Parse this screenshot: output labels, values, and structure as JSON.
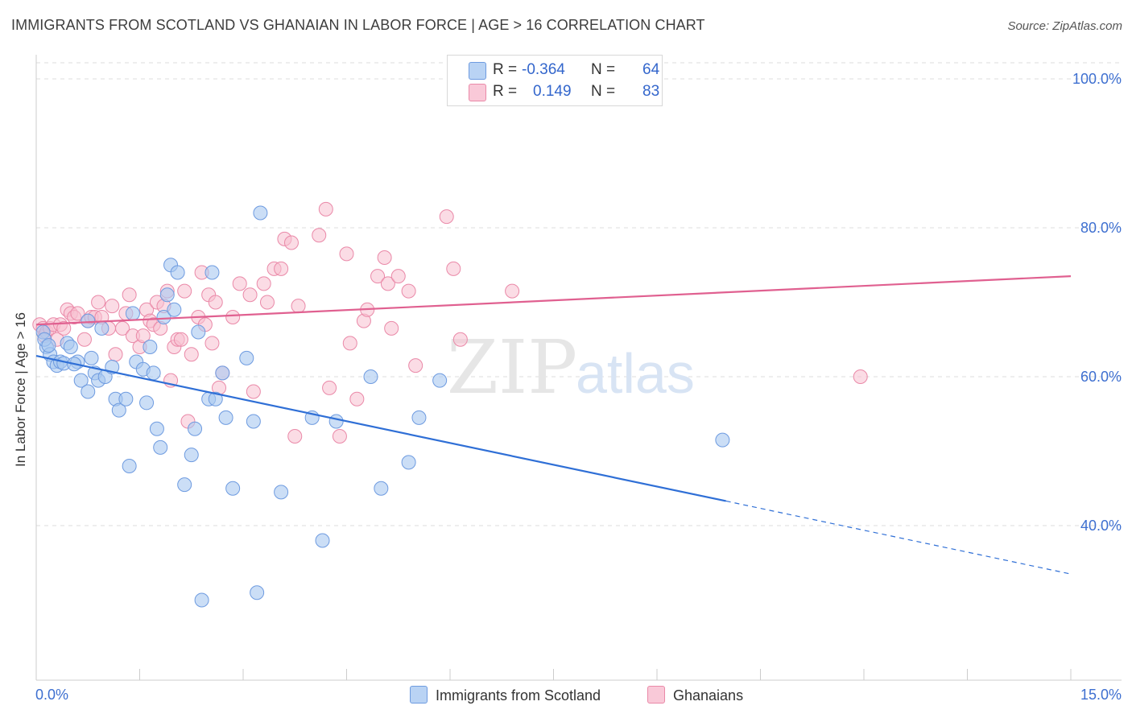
{
  "header": {
    "title": "IMMIGRANTS FROM SCOTLAND VS GHANAIAN IN LABOR FORCE | AGE > 16 CORRELATION CHART",
    "source": "Source: ZipAtlas.com"
  },
  "watermark": {
    "part1": "ZIP",
    "part2": "atlas"
  },
  "legend_top": {
    "rows": [
      {
        "r_label": "R =",
        "r_value": "-0.364",
        "n_label": "N =",
        "n_value": "64"
      },
      {
        "r_label": "R =",
        "r_value": "0.149",
        "n_label": "N =",
        "n_value": "83"
      }
    ]
  },
  "legend_bottom": {
    "series1": "Immigrants from Scotland",
    "series2": "Ghanaians"
  },
  "colors": {
    "blue_fill": "#a9c8f0",
    "blue_stroke": "#6e9be0",
    "blue_line": "#2f6fd6",
    "pink_fill": "#f7bfd0",
    "pink_stroke": "#ea89a8",
    "pink_line": "#e06090",
    "axis_text": "#3d6fd0",
    "grid": "#dddddd"
  },
  "chart_data": {
    "type": "scatter",
    "title": "IMMIGRANTS FROM SCOTLAND VS GHANAIAN IN LABOR FORCE | AGE > 16 CORRELATION CHART",
    "xlabel": "",
    "ylabel": "In Labor Force | Age > 16",
    "xlim": [
      0,
      15
    ],
    "ylim": [
      20,
      105
    ],
    "x_tick_labels": [
      "0.0%",
      "15.0%"
    ],
    "y_ticks": [
      100,
      80,
      60,
      40
    ],
    "y_tick_labels": [
      "100.0%",
      "80.0%",
      "60.0%",
      "40.0%"
    ],
    "grid": true,
    "legend_placement": "top-center",
    "series": [
      {
        "name": "Immigrants from Scotland",
        "color": "#a9c8f0",
        "r": -0.364,
        "n": 64,
        "trend": {
          "x": [
            0.0,
            10.0
          ],
          "y": [
            62.8,
            43.3
          ],
          "dashed_to": [
            15.0,
            33.5
          ]
        },
        "points": [
          [
            0.1,
            66.0
          ],
          [
            0.15,
            64.0
          ],
          [
            0.12,
            65.0
          ],
          [
            0.2,
            63.0
          ],
          [
            0.25,
            62.0
          ],
          [
            0.3,
            61.5
          ],
          [
            0.35,
            62.0
          ],
          [
            0.4,
            61.8
          ],
          [
            0.45,
            64.5
          ],
          [
            0.5,
            64.0
          ],
          [
            0.6,
            62.0
          ],
          [
            0.65,
            59.5
          ],
          [
            0.75,
            58.0
          ],
          [
            0.8,
            62.5
          ],
          [
            0.85,
            60.5
          ],
          [
            0.9,
            59.5
          ],
          [
            1.0,
            60.0
          ],
          [
            0.75,
            67.5
          ],
          [
            0.95,
            66.5
          ],
          [
            1.15,
            57.0
          ],
          [
            1.2,
            55.5
          ],
          [
            1.3,
            57.0
          ],
          [
            1.35,
            48.0
          ],
          [
            1.4,
            68.5
          ],
          [
            1.45,
            62.0
          ],
          [
            1.55,
            61.0
          ],
          [
            1.6,
            56.5
          ],
          [
            1.65,
            64.0
          ],
          [
            1.7,
            60.5
          ],
          [
            1.75,
            53.0
          ],
          [
            1.8,
            50.5
          ],
          [
            1.85,
            68.0
          ],
          [
            1.9,
            71.0
          ],
          [
            1.95,
            75.0
          ],
          [
            2.05,
            74.0
          ],
          [
            2.0,
            69.0
          ],
          [
            2.15,
            45.5
          ],
          [
            2.25,
            49.5
          ],
          [
            2.3,
            53.0
          ],
          [
            2.35,
            66.0
          ],
          [
            2.4,
            30.0
          ],
          [
            2.5,
            57.0
          ],
          [
            2.55,
            74.0
          ],
          [
            2.6,
            57.0
          ],
          [
            2.7,
            60.5
          ],
          [
            2.75,
            54.5
          ],
          [
            2.85,
            45.0
          ],
          [
            3.05,
            62.5
          ],
          [
            3.15,
            54.0
          ],
          [
            3.2,
            31.0
          ],
          [
            3.25,
            82.0
          ],
          [
            3.55,
            44.5
          ],
          [
            4.0,
            54.5
          ],
          [
            4.15,
            38.0
          ],
          [
            4.35,
            54.0
          ],
          [
            4.85,
            60.0
          ],
          [
            5.0,
            45.0
          ],
          [
            5.4,
            48.5
          ],
          [
            5.55,
            54.5
          ],
          [
            5.85,
            59.5
          ],
          [
            0.18,
            64.2
          ],
          [
            0.55,
            61.7
          ],
          [
            9.95,
            51.5
          ],
          [
            1.1,
            61.3
          ]
        ]
      },
      {
        "name": "Ghanaians",
        "color": "#f7bfd0",
        "r": 0.149,
        "n": 83,
        "trend": {
          "x": [
            0.0,
            15.0
          ],
          "y": [
            67.0,
            73.5
          ]
        },
        "points": [
          [
            0.05,
            67.0
          ],
          [
            0.1,
            66.5
          ],
          [
            0.12,
            65.5
          ],
          [
            0.15,
            66.0
          ],
          [
            0.2,
            66.5
          ],
          [
            0.25,
            67.0
          ],
          [
            0.3,
            65.0
          ],
          [
            0.35,
            67.0
          ],
          [
            0.4,
            66.5
          ],
          [
            0.45,
            69.0
          ],
          [
            0.5,
            68.5
          ],
          [
            0.55,
            68.0
          ],
          [
            0.6,
            68.5
          ],
          [
            0.7,
            65.0
          ],
          [
            0.75,
            67.5
          ],
          [
            0.8,
            68.0
          ],
          [
            0.85,
            68.0
          ],
          [
            0.9,
            70.0
          ],
          [
            0.95,
            68.0
          ],
          [
            1.05,
            66.5
          ],
          [
            1.1,
            69.5
          ],
          [
            1.15,
            63.0
          ],
          [
            1.25,
            66.5
          ],
          [
            1.3,
            68.5
          ],
          [
            1.35,
            71.0
          ],
          [
            1.4,
            65.5
          ],
          [
            1.5,
            64.0
          ],
          [
            1.55,
            65.5
          ],
          [
            1.6,
            69.0
          ],
          [
            1.65,
            67.5
          ],
          [
            1.7,
            67.0
          ],
          [
            1.75,
            70.0
          ],
          [
            1.8,
            66.5
          ],
          [
            1.85,
            69.5
          ],
          [
            1.9,
            71.5
          ],
          [
            1.95,
            59.5
          ],
          [
            2.0,
            64.0
          ],
          [
            2.05,
            65.0
          ],
          [
            2.1,
            65.0
          ],
          [
            2.15,
            71.5
          ],
          [
            2.2,
            54.0
          ],
          [
            2.25,
            63.0
          ],
          [
            2.35,
            68.0
          ],
          [
            2.4,
            74.0
          ],
          [
            2.45,
            67.0
          ],
          [
            2.5,
            71.0
          ],
          [
            2.55,
            64.5
          ],
          [
            2.6,
            70.0
          ],
          [
            2.65,
            58.5
          ],
          [
            2.7,
            60.5
          ],
          [
            2.85,
            68.0
          ],
          [
            2.95,
            72.5
          ],
          [
            3.1,
            71.0
          ],
          [
            3.15,
            58.0
          ],
          [
            3.3,
            72.5
          ],
          [
            3.35,
            70.0
          ],
          [
            3.45,
            74.5
          ],
          [
            3.55,
            74.5
          ],
          [
            3.6,
            78.5
          ],
          [
            3.7,
            78.0
          ],
          [
            3.75,
            52.0
          ],
          [
            3.8,
            69.5
          ],
          [
            4.1,
            79.0
          ],
          [
            4.2,
            82.5
          ],
          [
            4.25,
            58.5
          ],
          [
            4.4,
            52.0
          ],
          [
            4.5,
            76.5
          ],
          [
            4.55,
            64.5
          ],
          [
            4.65,
            57.0
          ],
          [
            4.75,
            67.5
          ],
          [
            4.8,
            69.0
          ],
          [
            4.95,
            73.5
          ],
          [
            5.05,
            76.0
          ],
          [
            5.1,
            72.5
          ],
          [
            5.15,
            66.5
          ],
          [
            5.25,
            73.5
          ],
          [
            5.4,
            71.5
          ],
          [
            5.5,
            61.5
          ],
          [
            5.95,
            81.5
          ],
          [
            6.05,
            74.5
          ],
          [
            6.15,
            65.0
          ],
          [
            6.9,
            71.5
          ],
          [
            11.95,
            60.0
          ]
        ]
      }
    ]
  }
}
